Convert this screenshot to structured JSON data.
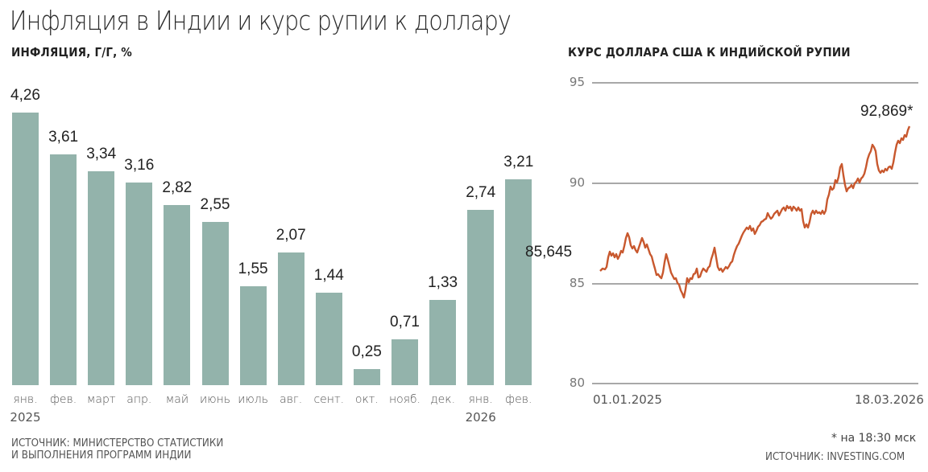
{
  "title": "Инфляция в Индии и курс рупии к доллару",
  "left_chart": {
    "subtitle": "ИНФЛЯЦИЯ, Г/Г, %",
    "source_line1": "ИСТОЧНИК: МИНИСТЕРСТВО СТАТИСТИКИ",
    "source_line2": "И ВЫПОЛНЕНИЯ ПРОГРАММ ИНДИИ",
    "bar_color": "#93b3ab",
    "bars": [
      {
        "month": "янв.",
        "year": "2025",
        "label": "4,26",
        "value": 4.26
      },
      {
        "month": "фев.",
        "year": "",
        "label": "3,61",
        "value": 3.61
      },
      {
        "month": "март",
        "year": "",
        "label": "3,34",
        "value": 3.34
      },
      {
        "month": "апр.",
        "year": "",
        "label": "3,16",
        "value": 3.16
      },
      {
        "month": "май",
        "year": "",
        "label": "2,82",
        "value": 2.82
      },
      {
        "month": "июнь",
        "year": "",
        "label": "2,55",
        "value": 2.55
      },
      {
        "month": "июль",
        "year": "",
        "label": "1,55",
        "value": 1.55
      },
      {
        "month": "авг.",
        "year": "",
        "label": "2,07",
        "value": 2.07
      },
      {
        "month": "сент.",
        "year": "",
        "label": "1,44",
        "value": 1.44
      },
      {
        "month": "окт.",
        "year": "",
        "label": "0,25",
        "value": 0.25
      },
      {
        "month": "нояб.",
        "year": "",
        "label": "0,71",
        "value": 0.71
      },
      {
        "month": "дек.",
        "year": "",
        "label": "1,33",
        "value": 1.33
      },
      {
        "month": "янв.",
        "year": "2026",
        "label": "2,74",
        "value": 2.74
      },
      {
        "month": "фев.",
        "year": "",
        "label": "3,21",
        "value": 3.21
      }
    ]
  },
  "right_chart": {
    "subtitle": "КУРС ДОЛЛАРА США К ИНДИЙСКОЙ РУПИИ",
    "y_ticks": [
      "95",
      "90",
      "85",
      "80"
    ],
    "start_date": "01.01.2025",
    "end_date": "18.03.2026",
    "start_value_label": "85,645",
    "end_value_label": "92,869*",
    "footnote": "* на 18:30 мск",
    "source": "ИСТОЧНИК: INVESTING.COM",
    "line_color": "#c8582e",
    "grid_color": "#a8a8a8"
  },
  "chart_data": [
    {
      "type": "bar",
      "title": "ИНФЛЯЦИЯ, Г/Г, %",
      "categories": [
        "янв. 2025",
        "фев.",
        "март",
        "апр.",
        "май",
        "июнь",
        "июль",
        "авг.",
        "сент.",
        "окт.",
        "нояб.",
        "дек.",
        "янв. 2026",
        "фев."
      ],
      "values": [
        4.26,
        3.61,
        3.34,
        3.16,
        2.82,
        2.55,
        1.55,
        2.07,
        1.44,
        0.25,
        0.71,
        1.33,
        2.74,
        3.21
      ],
      "xlabel": "",
      "ylabel": "%",
      "source": "ИСТОЧНИК: МИНИСТЕРСТВО СТАТИСТИКИ И ВЫПОЛНЕНИЯ ПРОГРАММ ИНДИИ"
    },
    {
      "type": "line",
      "title": "КУРС ДОЛЛАРА США К ИНДИЙСКОЙ РУПИИ",
      "x": [
        "01.01.2025",
        "02.2025",
        "03.2025",
        "04.2025",
        "05.2025",
        "06.2025",
        "07.2025",
        "08.2025",
        "09.2025",
        "10.2025",
        "11.2025",
        "12.2025",
        "01.2026",
        "02.2026",
        "18.03.2026"
      ],
      "series": [
        {
          "name": "USD/INR",
          "values": [
            85.645,
            86.6,
            87.3,
            85.5,
            84.9,
            85.6,
            86.3,
            87.6,
            88.1,
            88.7,
            88.5,
            89.9,
            91.2,
            90.7,
            92.869
          ]
        }
      ],
      "ylim": [
        80,
        95
      ],
      "yticks": [
        80,
        85,
        90,
        95
      ],
      "grid": true,
      "annotations": [
        "85,645",
        "92,869*"
      ],
      "footnote": "* на 18:30 мск",
      "source": "ИСТОЧНИК: INVESTING.COM"
    }
  ]
}
